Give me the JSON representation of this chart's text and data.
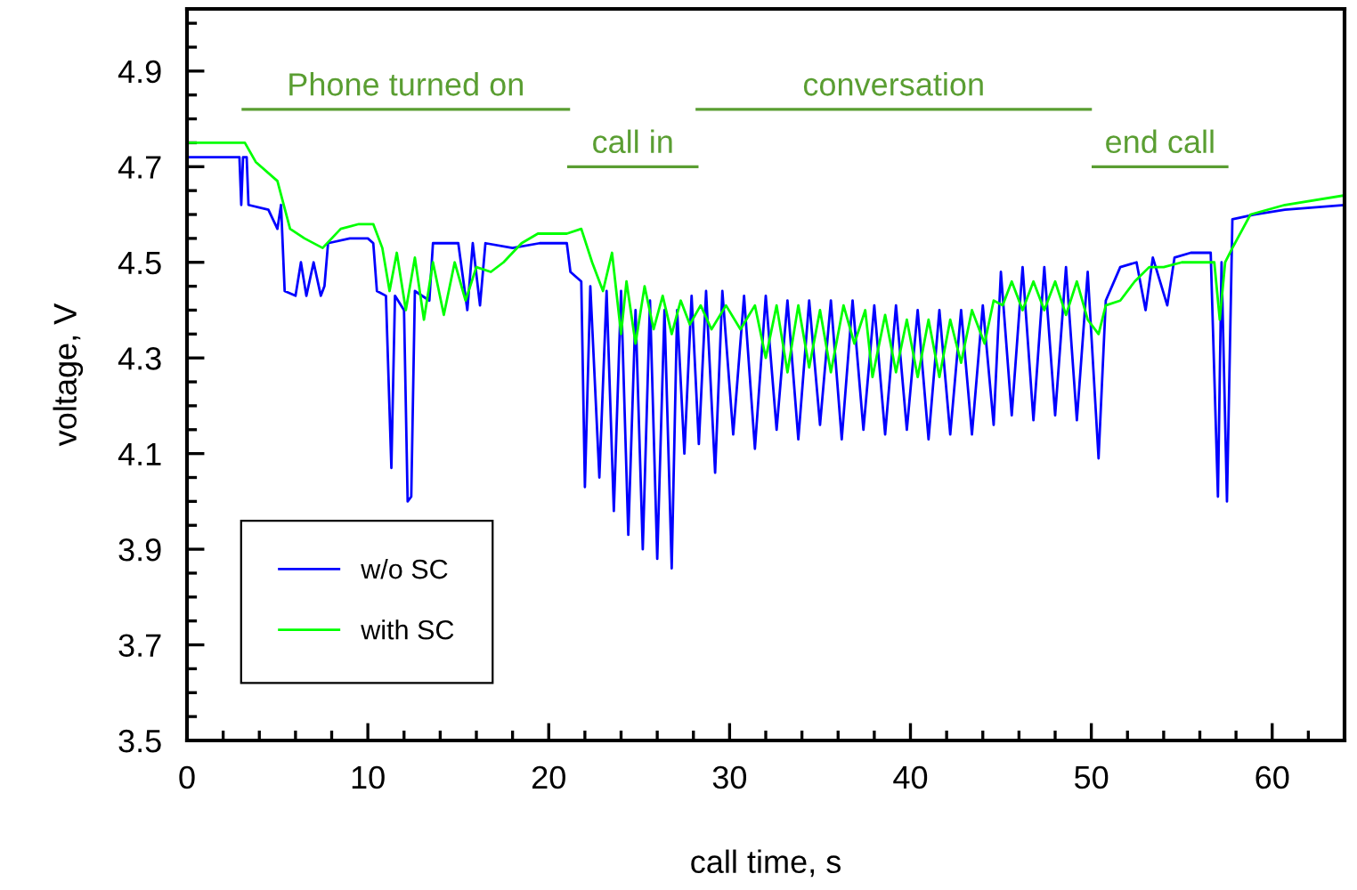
{
  "chart_data": {
    "type": "line",
    "xlabel": "call time, s",
    "ylabel": "voltage, V",
    "xlim": [
      0,
      64
    ],
    "ylim": [
      3.5,
      5.03
    ],
    "xticks": [
      0,
      {
        "value": 2,
        "label": null
      },
      {
        "value": 4,
        "label": null
      },
      {
        "value": 6,
        "label": null
      },
      {
        "value": 8,
        "label": null
      },
      10,
      {
        "value": 12,
        "label": null
      },
      {
        "value": 14,
        "label": null
      },
      {
        "value": 16,
        "label": null
      },
      {
        "value": 18,
        "label": null
      },
      20,
      {
        "value": 22,
        "label": null
      },
      {
        "value": 24,
        "label": null
      },
      {
        "value": 26,
        "label": null
      },
      {
        "value": 28,
        "label": null
      },
      30,
      {
        "value": 32,
        "label": null
      },
      {
        "value": 34,
        "label": null
      },
      {
        "value": 36,
        "label": null
      },
      {
        "value": 38,
        "label": null
      },
      40,
      {
        "value": 42,
        "label": null
      },
      {
        "value": 44,
        "label": null
      },
      {
        "value": 46,
        "label": null
      },
      {
        "value": 48,
        "label": null
      },
      50,
      {
        "value": 52,
        "label": null
      },
      {
        "value": 54,
        "label": null
      },
      {
        "value": 56,
        "label": null
      },
      {
        "value": 58,
        "label": null
      },
      60,
      {
        "value": 62,
        "label": null
      }
    ],
    "yticks": [
      3.5,
      {
        "value": 3.55,
        "label": null
      },
      {
        "value": 3.6,
        "label": null
      },
      {
        "value": 3.65,
        "label": null
      },
      3.7,
      {
        "value": 3.75,
        "label": null
      },
      {
        "value": 3.8,
        "label": null
      },
      {
        "value": 3.85,
        "label": null
      },
      3.9,
      {
        "value": 3.95,
        "label": null
      },
      {
        "value": 4.0,
        "label": null
      },
      {
        "value": 4.05,
        "label": null
      },
      4.1,
      {
        "value": 4.15,
        "label": null
      },
      {
        "value": 4.2,
        "label": null
      },
      {
        "value": 4.25,
        "label": null
      },
      4.3,
      {
        "value": 4.35,
        "label": null
      },
      {
        "value": 4.4,
        "label": null
      },
      {
        "value": 4.45,
        "label": null
      },
      4.5,
      {
        "value": 4.55,
        "label": null
      },
      {
        "value": 4.6,
        "label": null
      },
      {
        "value": 4.65,
        "label": null
      },
      4.7,
      {
        "value": 4.75,
        "label": null
      },
      {
        "value": 4.8,
        "label": null
      },
      {
        "value": 4.85,
        "label": null
      },
      4.9,
      {
        "value": 4.95,
        "label": null
      },
      {
        "value": 5.0,
        "label": null
      }
    ],
    "grid": false,
    "legend": "bottom left",
    "marker": "none",
    "line_style": "solid",
    "series": [
      {
        "name": "Phone turned on",
        "type": "step",
        "color": "#5a9e32",
        "x": [
          3.1,
          21.1
        ],
        "values": [
          4.82,
          4.82
        ]
      },
      {
        "name": "call in",
        "type": "step",
        "color": "#5a9e32",
        "x": [
          21.1,
          28.2
        ],
        "values": [
          4.7,
          4.7
        ]
      },
      {
        "name": "conversation",
        "type": "step",
        "color": "#5a9e32",
        "x": [
          28.2,
          49.95
        ],
        "values": [
          4.82,
          4.82
        ]
      },
      {
        "name": "end call",
        "type": "step",
        "color": "#5a9e32",
        "x": [
          50.1,
          57.5
        ],
        "values": [
          4.7,
          4.7
        ]
      },
      {
        "name": "w/o SC",
        "color": "#0000ff",
        "x": [
          0,
          2.9,
          3.0,
          3.1,
          3.3,
          3.4,
          4.5,
          5.0,
          5.2,
          5.4,
          6.0,
          6.3,
          6.6,
          7.0,
          7.4,
          7.6,
          7.8,
          9.0,
          10.0,
          10.3,
          10.5,
          11.0,
          11.3,
          11.5,
          12.0,
          12.2,
          12.4,
          12.6,
          13.4,
          13.6,
          15.0,
          15.5,
          15.8,
          16.2,
          16.5,
          18.0,
          19.5,
          21.0,
          21.2,
          21.8,
          22.0,
          22.3,
          22.8,
          23.2,
          23.6,
          24.0,
          24.4,
          24.8,
          25.2,
          25.6,
          26.0,
          26.4,
          26.8,
          27.1,
          27.5,
          27.9,
          28.3,
          28.7,
          29.2,
          29.6,
          30.2,
          30.8,
          31.4,
          32.0,
          32.6,
          33.2,
          33.8,
          34.4,
          35.0,
          35.6,
          36.2,
          36.8,
          37.4,
          38.0,
          38.6,
          39.2,
          39.8,
          40.4,
          41.0,
          41.6,
          42.2,
          42.8,
          43.4,
          44.0,
          44.6,
          45.0,
          45.6,
          46.2,
          46.8,
          47.4,
          48.0,
          48.6,
          49.2,
          49.8,
          50.4,
          50.8,
          51.6,
          52.5,
          53.0,
          53.4,
          54.2,
          54.6,
          55.5,
          56.6,
          57.0,
          57.2,
          57.5,
          57.8,
          59.0,
          60.7,
          64.0
        ],
        "values": [
          4.72,
          4.72,
          4.62,
          4.72,
          4.72,
          4.62,
          4.61,
          4.57,
          4.62,
          4.44,
          4.43,
          4.5,
          4.43,
          4.5,
          4.43,
          4.45,
          4.54,
          4.55,
          4.55,
          4.54,
          4.44,
          4.43,
          4.07,
          4.43,
          4.4,
          4.0,
          4.01,
          4.44,
          4.42,
          4.54,
          4.54,
          4.4,
          4.54,
          4.41,
          4.54,
          4.53,
          4.54,
          4.54,
          4.48,
          4.46,
          4.03,
          4.45,
          4.05,
          4.44,
          3.98,
          4.44,
          3.93,
          4.4,
          3.9,
          4.42,
          3.88,
          4.4,
          3.86,
          4.4,
          4.1,
          4.43,
          4.12,
          4.44,
          4.06,
          4.44,
          4.14,
          4.43,
          4.11,
          4.43,
          4.15,
          4.42,
          4.13,
          4.42,
          4.16,
          4.42,
          4.13,
          4.42,
          4.15,
          4.41,
          4.14,
          4.41,
          4.15,
          4.4,
          4.13,
          4.4,
          4.14,
          4.4,
          4.14,
          4.41,
          4.16,
          4.48,
          4.18,
          4.49,
          4.17,
          4.49,
          4.18,
          4.49,
          4.17,
          4.48,
          4.09,
          4.42,
          4.49,
          4.5,
          4.4,
          4.51,
          4.41,
          4.51,
          4.52,
          4.52,
          4.01,
          4.5,
          4.0,
          4.59,
          4.6,
          4.61,
          4.62
        ]
      },
      {
        "name": "with SC",
        "color": "#00ff00",
        "x": [
          0,
          3.2,
          3.8,
          5.0,
          5.7,
          6.5,
          7.5,
          8.5,
          9.5,
          10.3,
          10.8,
          11.2,
          11.6,
          12.1,
          12.6,
          13.1,
          13.6,
          14.2,
          14.8,
          15.4,
          16.0,
          16.8,
          17.5,
          18.5,
          19.4,
          21.0,
          21.8,
          22.4,
          23.0,
          23.5,
          24.0,
          24.3,
          24.8,
          25.3,
          25.8,
          26.3,
          26.8,
          27.3,
          27.8,
          28.4,
          29.0,
          29.8,
          30.6,
          31.4,
          32.0,
          32.6,
          33.2,
          33.8,
          34.4,
          35.0,
          35.6,
          36.3,
          36.9,
          37.5,
          37.9,
          38.6,
          39.2,
          39.8,
          40.4,
          41.0,
          41.6,
          42.2,
          42.8,
          43.4,
          44.1,
          44.6,
          45.1,
          45.6,
          46.2,
          46.8,
          47.4,
          48.0,
          48.6,
          49.2,
          49.8,
          50.4,
          50.8,
          51.6,
          52.4,
          53.2,
          54.0,
          55.0,
          56.0,
          56.8,
          57.1,
          57.4,
          57.8,
          58.8,
          60.7,
          64.0
        ],
        "values": [
          4.75,
          4.75,
          4.71,
          4.67,
          4.57,
          4.55,
          4.53,
          4.57,
          4.58,
          4.58,
          4.53,
          4.44,
          4.52,
          4.4,
          4.51,
          4.38,
          4.5,
          4.39,
          4.5,
          4.42,
          4.49,
          4.48,
          4.5,
          4.54,
          4.56,
          4.56,
          4.57,
          4.5,
          4.44,
          4.52,
          4.35,
          4.46,
          4.33,
          4.45,
          4.36,
          4.43,
          4.35,
          4.42,
          4.37,
          4.41,
          4.36,
          4.41,
          4.36,
          4.41,
          4.3,
          4.41,
          4.27,
          4.41,
          4.28,
          4.4,
          4.27,
          4.41,
          4.33,
          4.4,
          4.26,
          4.39,
          4.27,
          4.38,
          4.26,
          4.38,
          4.26,
          4.38,
          4.29,
          4.4,
          4.33,
          4.42,
          4.41,
          4.46,
          4.4,
          4.46,
          4.4,
          4.46,
          4.39,
          4.46,
          4.38,
          4.35,
          4.41,
          4.42,
          4.46,
          4.49,
          4.49,
          4.5,
          4.5,
          4.5,
          4.38,
          4.5,
          4.53,
          4.6,
          4.62,
          4.64
        ]
      }
    ]
  }
}
